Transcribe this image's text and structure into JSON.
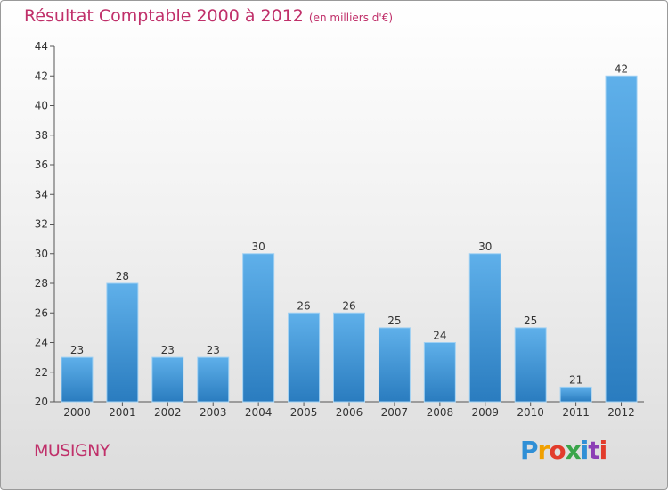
{
  "header": {
    "title": "Résultat Comptable 2000 à 2012",
    "subtitle": "(en milliers d'€)"
  },
  "footer": {
    "commune": "MUSIGNY",
    "logo_letters": [
      "P",
      "r",
      "o",
      "x",
      "i",
      "t",
      "i"
    ]
  },
  "colors": {
    "title": "#c0306a",
    "bar_top": "#5fb0ea",
    "bar_bottom": "#2a7cbf",
    "axis": "#555555"
  },
  "chart_data": {
    "type": "bar",
    "title": "Résultat Comptable 2000 à 2012",
    "subtitle": "(en milliers d'€)",
    "xlabel": "",
    "ylabel": "",
    "categories": [
      "2000",
      "2001",
      "2002",
      "2003",
      "2004",
      "2005",
      "2006",
      "2007",
      "2008",
      "2009",
      "2010",
      "2011",
      "2012"
    ],
    "values": [
      23,
      28,
      23,
      23,
      30,
      26,
      26,
      25,
      24,
      30,
      25,
      21,
      42
    ],
    "ylim": [
      20,
      44
    ],
    "yticks": [
      20,
      22,
      24,
      26,
      28,
      30,
      32,
      34,
      36,
      38,
      40,
      42,
      44
    ],
    "grid": false,
    "legend": "none"
  }
}
